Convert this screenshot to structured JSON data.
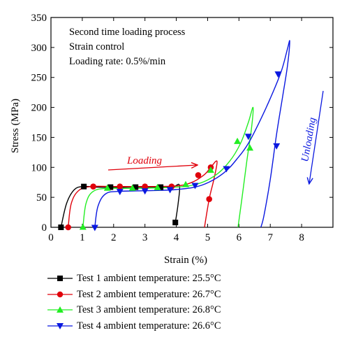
{
  "chart_data": {
    "type": "line",
    "xlabel": "Strain (%)",
    "ylabel": "Stress (MPa)",
    "xlim": [
      0,
      9
    ],
    "ylim": [
      0,
      350
    ],
    "xticks": [
      0,
      1,
      2,
      3,
      4,
      5,
      6,
      7,
      8
    ],
    "yticks": [
      0,
      50,
      100,
      150,
      200,
      250,
      300,
      350
    ],
    "annotations": {
      "text_lines": [
        "Second time loading process",
        "Strain control",
        "Loading rate: 0.5%/min"
      ],
      "loading": "Loading",
      "unloading": "Unloading"
    },
    "series": [
      {
        "name": "Test 1 ambient temperature: 25.5°C",
        "color": "#000000",
        "marker": "square",
        "curve": [
          [
            0.32,
            0
          ],
          [
            0.5,
            40
          ],
          [
            0.75,
            63
          ],
          [
            1.05,
            68
          ],
          [
            1.5,
            67
          ],
          [
            2.0,
            66.5
          ],
          [
            2.5,
            67
          ],
          [
            3.0,
            67
          ],
          [
            3.5,
            67
          ],
          [
            3.9,
            67.5
          ],
          [
            4.1,
            70
          ],
          [
            4.06,
            40
          ],
          [
            3.97,
            8
          ]
        ],
        "points": [
          [
            0.32,
            0
          ],
          [
            1.05,
            68
          ],
          [
            1.9,
            67
          ],
          [
            2.7,
            67
          ],
          [
            3.5,
            67
          ],
          [
            3.97,
            8
          ]
        ]
      },
      {
        "name": "Test 2 ambient temperature: 26.7°C",
        "color": "#e0000b",
        "marker": "circle",
        "curve": [
          [
            0.55,
            0
          ],
          [
            0.65,
            40
          ],
          [
            0.9,
            62
          ],
          [
            1.3,
            68
          ],
          [
            2.0,
            68
          ],
          [
            3.0,
            68
          ],
          [
            4.0,
            69
          ],
          [
            4.5,
            75
          ],
          [
            4.9,
            88
          ],
          [
            5.1,
            100
          ],
          [
            5.3,
            110
          ],
          [
            5.2,
            80
          ],
          [
            5.05,
            47
          ],
          [
            4.9,
            0
          ]
        ],
        "points": [
          [
            0.55,
            0
          ],
          [
            1.35,
            68
          ],
          [
            2.2,
            68
          ],
          [
            3.0,
            68
          ],
          [
            3.85,
            68
          ],
          [
            4.7,
            87
          ],
          [
            5.1,
            100
          ],
          [
            5.05,
            47
          ]
        ]
      },
      {
        "name": "Test 3 ambient temperature: 26.8°C",
        "color": "#22ee22",
        "marker": "triangle-up",
        "curve": [
          [
            1.02,
            0
          ],
          [
            1.12,
            40
          ],
          [
            1.35,
            60
          ],
          [
            1.8,
            65
          ],
          [
            2.5,
            65
          ],
          [
            3.5,
            66
          ],
          [
            4.5,
            70
          ],
          [
            5.2,
            85
          ],
          [
            5.7,
            110
          ],
          [
            6.05,
            140
          ],
          [
            6.3,
            175
          ],
          [
            6.45,
            200
          ],
          [
            6.4,
            165
          ],
          [
            6.25,
            110
          ],
          [
            6.1,
            50
          ],
          [
            5.97,
            0
          ]
        ],
        "points": [
          [
            1.02,
            0
          ],
          [
            1.8,
            65
          ],
          [
            2.6,
            65
          ],
          [
            3.4,
            66
          ],
          [
            4.3,
            71
          ],
          [
            5.1,
            95
          ],
          [
            5.95,
            143
          ],
          [
            6.35,
            132
          ]
        ]
      },
      {
        "name": "Test 4 ambient temperature: 26.6°C",
        "color": "#0a18e0",
        "marker": "triangle-down",
        "curve": [
          [
            1.4,
            0
          ],
          [
            1.5,
            35
          ],
          [
            1.75,
            56
          ],
          [
            2.2,
            60
          ],
          [
            3.0,
            61
          ],
          [
            4.0,
            63
          ],
          [
            4.8,
            70
          ],
          [
            5.5,
            90
          ],
          [
            6.0,
            118
          ],
          [
            6.3,
            140
          ],
          [
            6.6,
            170
          ],
          [
            7.0,
            215
          ],
          [
            7.35,
            260
          ],
          [
            7.55,
            298
          ],
          [
            7.62,
            310
          ],
          [
            7.55,
            270
          ],
          [
            7.4,
            220
          ],
          [
            7.2,
            155
          ],
          [
            7.0,
            80
          ],
          [
            6.8,
            20
          ],
          [
            6.7,
            0
          ]
        ],
        "points": [
          [
            1.4,
            0
          ],
          [
            2.2,
            60
          ],
          [
            3.0,
            61
          ],
          [
            3.8,
            63
          ],
          [
            4.6,
            70
          ],
          [
            5.6,
            98
          ],
          [
            6.3,
            152
          ],
          [
            7.25,
            256
          ],
          [
            7.2,
            136
          ]
        ]
      }
    ]
  }
}
